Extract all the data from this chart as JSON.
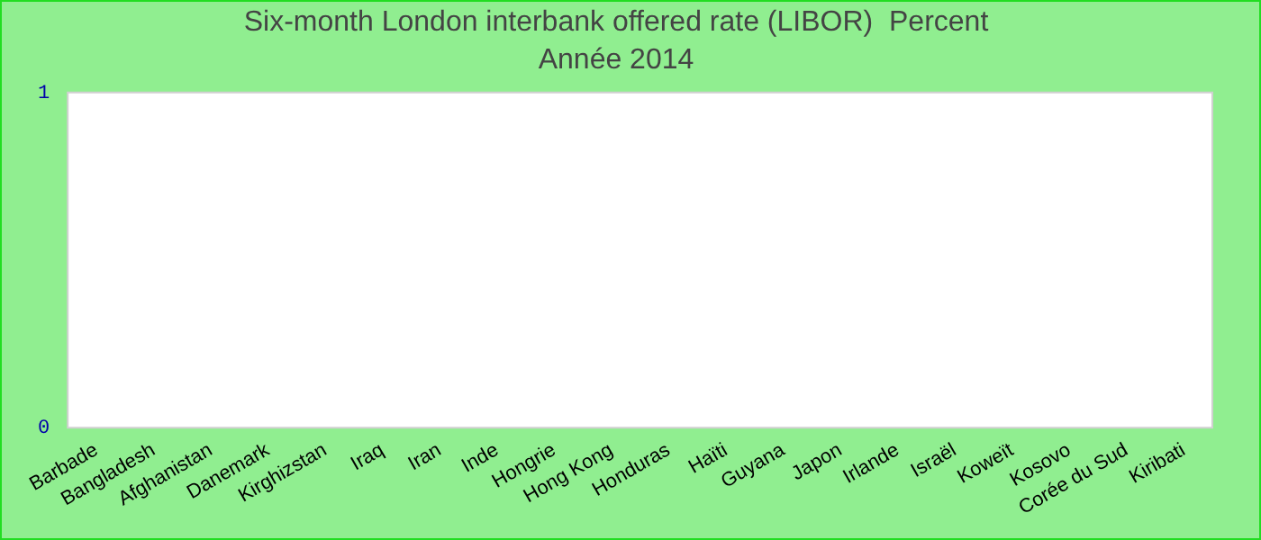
{
  "chart_data": {
    "type": "bar",
    "title": "Six-month London interbank offered rate (LIBOR)  Percent",
    "subtitle": "Année 2014",
    "categories": [
      "Barbade",
      "Bangladesh",
      "Afghanistan",
      "Danemark",
      "Kirghizstan",
      "Iraq",
      "Iran",
      "Inde",
      "Hongrie",
      "Hong Kong",
      "Honduras",
      "Haïti",
      "Guyana",
      "Japon",
      "Irlande",
      "Israël",
      "Koweït",
      "Kosovo",
      "Corée du Sud",
      "Kiribati"
    ],
    "values": [
      null,
      null,
      null,
      null,
      null,
      null,
      null,
      null,
      null,
      null,
      null,
      null,
      null,
      null,
      null,
      null,
      null,
      null,
      null,
      null
    ],
    "ylim": [
      0,
      1
    ],
    "yticks": [
      0,
      1
    ],
    "grid": false
  }
}
